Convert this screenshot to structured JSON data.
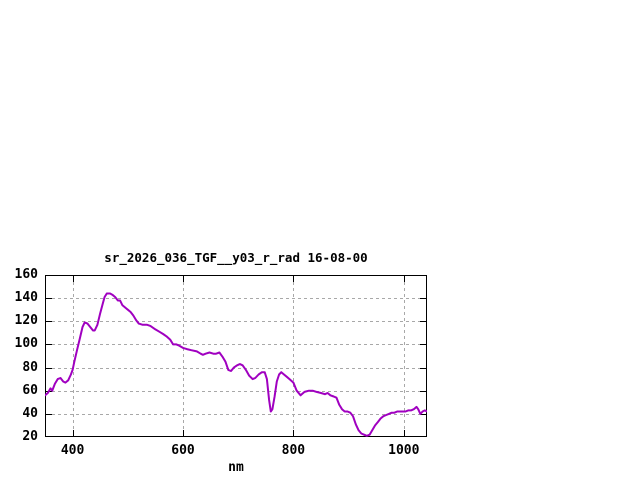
{
  "window": {
    "background": "#ffffff",
    "text_color": "#000000",
    "grid_color": "#a8a8a8",
    "border_color": "#000000"
  },
  "chart_data": {
    "type": "line",
    "title": "sr_2026_036_TGF__y03_r_rad 16-08-00",
    "xlabel": "nm",
    "ylabel": "",
    "xlim": [
      350,
      1042
    ],
    "ylim": [
      20,
      160
    ],
    "x_ticks": [
      400,
      600,
      800,
      1000
    ],
    "y_ticks": [
      20,
      40,
      60,
      80,
      100,
      120,
      140,
      160
    ],
    "grid": true,
    "legend": "none",
    "line_color": "#a000c0",
    "series": [
      {
        "name": "sr_2026_036_TGF__y03_r_rad",
        "x": [
          350,
          355,
          360,
          363,
          368,
          373,
          378,
          383,
          387,
          392,
          397,
          400,
          403,
          408,
          413,
          418,
          422,
          427,
          432,
          437,
          440,
          445,
          450,
          455,
          458,
          462,
          468,
          472,
          477,
          482,
          486,
          490,
          495,
          500,
          505,
          510,
          515,
          520,
          527,
          535,
          541,
          550,
          557,
          564,
          570,
          577,
          582,
          588,
          593,
          600,
          607,
          615,
          625,
          632,
          636,
          641,
          648,
          655,
          660,
          666,
          672,
          677,
          682,
          687,
          692,
          698,
          703,
          708,
          714,
          720,
          726,
          731,
          737,
          743,
          748,
          752,
          756,
          759,
          762,
          766,
          770,
          774,
          778,
          783,
          788,
          793,
          800,
          806,
          813,
          820,
          828,
          835,
          842,
          850,
          857,
          862,
          867,
          873,
          878,
          883,
          888,
          893,
          898,
          903,
          908,
          913,
          918,
          923,
          928,
          933,
          938,
          943,
          948,
          953,
          958,
          963,
          968,
          973,
          978,
          983,
          988,
          993,
          998,
          1003,
          1008,
          1013,
          1018,
          1023,
          1026,
          1030,
          1034,
          1038,
          1042
        ],
        "y": [
          56,
          58,
          62,
          60,
          66,
          70,
          71,
          68,
          67,
          69,
          74,
          78,
          85,
          95,
          105,
          115,
          119,
          118,
          115,
          112,
          112,
          117,
          127,
          136,
          141,
          144,
          144,
          143,
          141,
          138,
          138,
          134,
          132,
          130,
          128,
          125,
          121,
          118,
          117,
          117,
          116,
          113,
          111,
          109,
          107,
          104,
          100,
          100,
          99,
          97,
          96,
          95,
          94,
          92,
          91,
          92,
          93,
          92,
          92,
          93,
          89,
          85,
          78,
          77,
          80,
          82,
          83,
          82,
          78,
          73,
          70,
          71,
          74,
          76,
          76,
          70,
          52,
          42,
          44,
          55,
          68,
          74,
          76,
          74,
          72,
          70,
          67,
          60,
          56,
          59,
          60,
          60,
          59,
          58,
          57,
          58,
          56,
          55,
          54,
          48,
          44,
          42,
          42,
          41,
          38,
          31,
          26,
          23,
          22,
          21,
          22,
          26,
          30,
          33,
          36,
          38,
          39,
          40,
          41,
          41,
          42,
          42,
          42,
          42,
          43,
          43,
          44,
          46,
          44,
          40,
          42,
          43,
          42
        ]
      }
    ]
  }
}
